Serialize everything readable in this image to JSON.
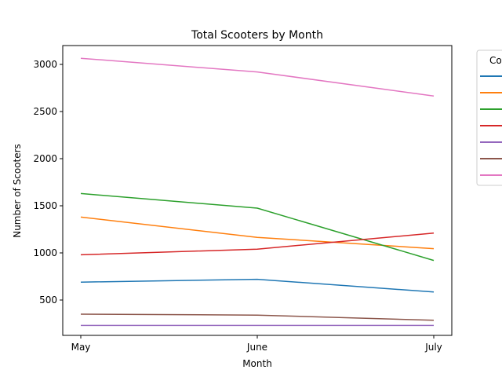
{
  "chart_data": {
    "type": "line",
    "title": "Total Scooters by Month",
    "xlabel": "Month",
    "ylabel": "Number of Scooters",
    "categories": [
      "May",
      "June",
      "July"
    ],
    "ylim": [
      125,
      3200
    ],
    "yticks": [
      500,
      1000,
      1500,
      2000,
      2500,
      3000
    ],
    "grid": false,
    "legend": {
      "title": "Co",
      "placement": "outside-right"
    },
    "series": [
      {
        "color": "#1f77b4",
        "values": [
          690,
          720,
          585
        ]
      },
      {
        "color": "#ff7f0e",
        "values": [
          1380,
          1165,
          1045
        ]
      },
      {
        "color": "#2ca02c",
        "values": [
          1630,
          1475,
          920
        ]
      },
      {
        "color": "#d62728",
        "values": [
          980,
          1040,
          1210
        ]
      },
      {
        "color": "#9467bd",
        "values": [
          230,
          230,
          230
        ]
      },
      {
        "color": "#8c564b",
        "values": [
          350,
          340,
          285
        ]
      },
      {
        "color": "#e377c2",
        "values": [
          3065,
          2920,
          2665
        ]
      }
    ]
  }
}
